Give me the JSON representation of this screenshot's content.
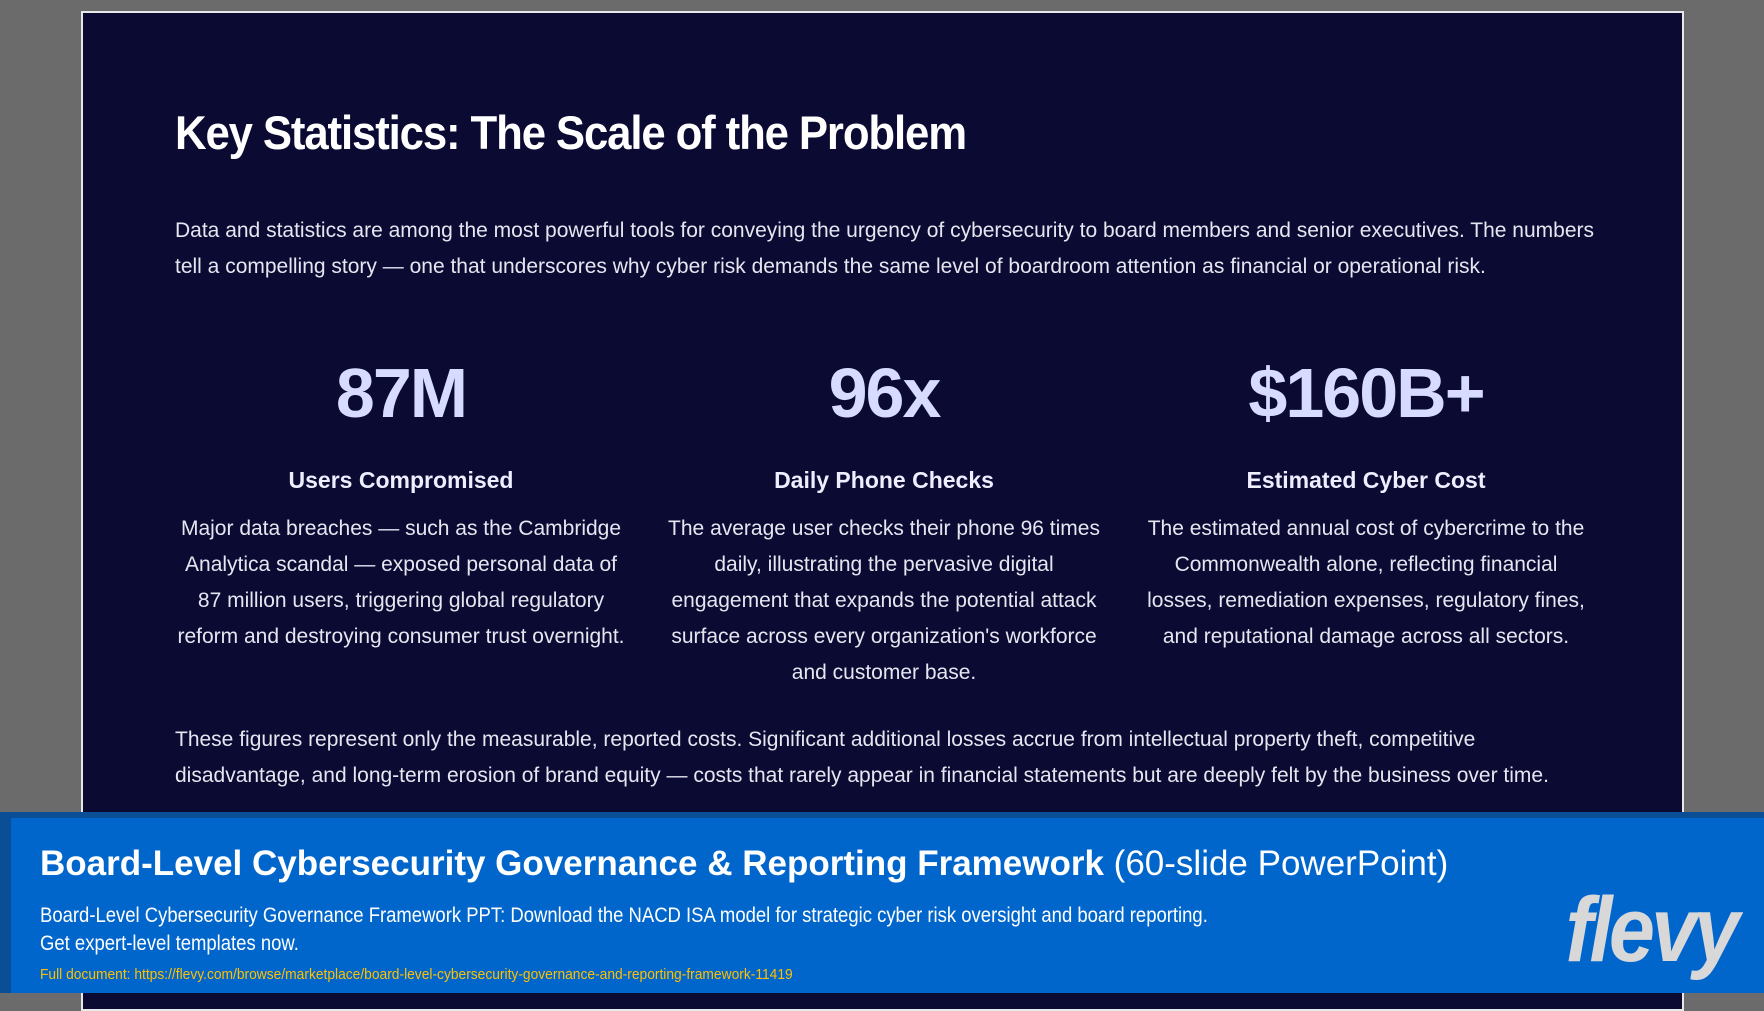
{
  "slide": {
    "title": "Key Statistics: The Scale of the Problem",
    "intro": "Data and statistics are among the most powerful tools for conveying the urgency of cybersecurity to board members and senior executives. The numbers tell a compelling story — one that underscores why cyber risk demands the same level of boardroom attention as financial or operational risk.",
    "stats": [
      {
        "value": "87M",
        "label": "Users Compromised",
        "desc": "Major data breaches — such as the Cambridge Analytica scandal — exposed personal data of 87 million users, triggering global regulatory reform and destroying consumer trust overnight."
      },
      {
        "value": "96x",
        "label": "Daily Phone Checks",
        "desc": "The average user checks their phone 96 times daily, illustrating the pervasive digital engagement that expands the potential attack surface across every organization's workforce and customer base."
      },
      {
        "value": "$160B+",
        "label": "Estimated Cyber Cost",
        "desc": "The estimated annual cost of cybercrime to the Commonwealth alone, reflecting financial losses, remediation expenses, regulatory fines, and reputational damage across all sectors."
      }
    ],
    "outro": "These figures represent only the measurable, reported costs. Significant additional losses accrue from intellectual property theft, competitive disadvantage, and long-term erosion of brand equity — costs that rarely appear in financial statements but are deeply felt by the business over time."
  },
  "banner": {
    "title": "Board-Level Cybersecurity Governance & Reporting Framework",
    "title_suffix": "(60-slide PowerPoint)",
    "line1": "Board-Level Cybersecurity Governance Framework PPT: Download the NACD ISA model for strategic cyber risk oversight and board reporting.",
    "line2": "Get expert-level templates now.",
    "url": "Full document: https://flevy.com/browse/marketplace/board-level-cybersecurity-governance-and-reporting-framework-11419",
    "logo": "flevy"
  }
}
